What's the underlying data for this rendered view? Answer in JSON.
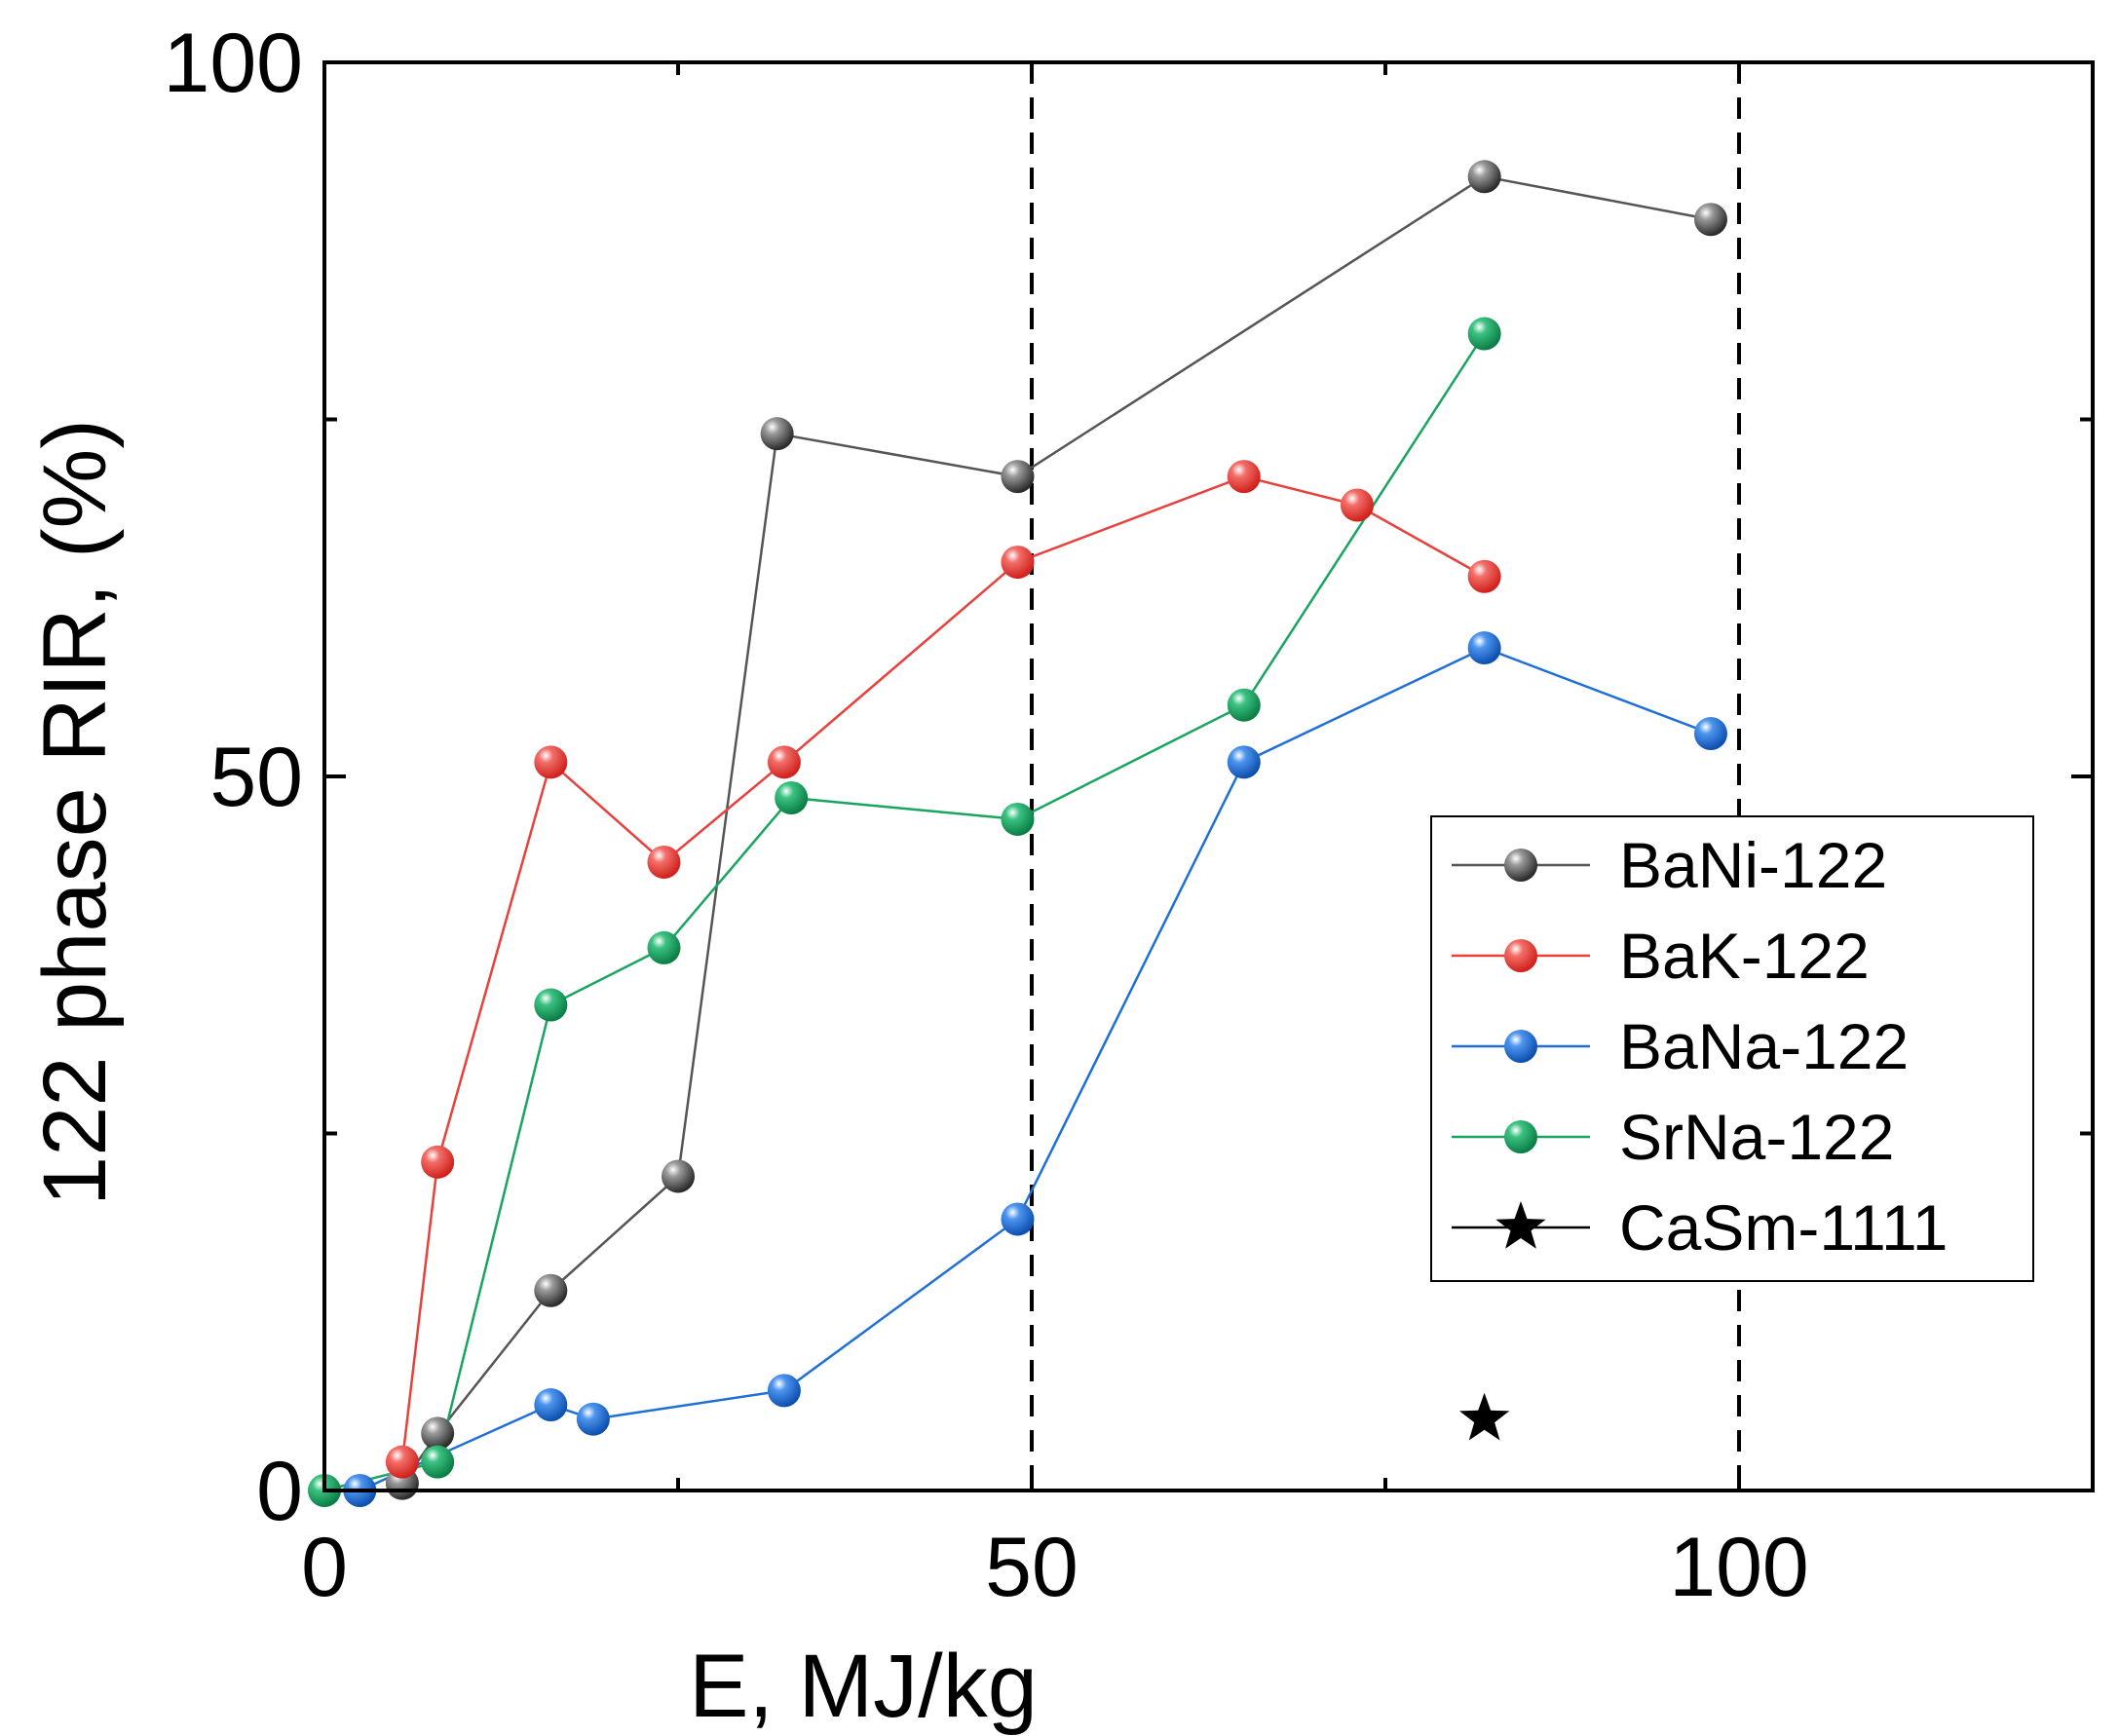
{
  "chart_data": {
    "type": "line",
    "title": "",
    "xlabel": "E, MJ/kg",
    "ylabel": "122 phase RIR, (%)",
    "xlim": [
      0,
      125
    ],
    "ylim": [
      0,
      100
    ],
    "xticks": [
      0,
      50,
      100
    ],
    "yticks": [
      0,
      50,
      100
    ],
    "xtick_labels": [
      "0",
      "50",
      "100"
    ],
    "ytick_labels": [
      "0",
      "50",
      "100"
    ],
    "reference_lines_x": [
      50,
      100
    ],
    "legend_position": "right",
    "series": [
      {
        "name": "BaNi-122",
        "color": "#555555",
        "marker": "sphere",
        "x": [
          5.5,
          8,
          16,
          25,
          32,
          49,
          82,
          98
        ],
        "y": [
          0.5,
          4,
          14,
          22,
          74,
          71,
          92,
          89
        ]
      },
      {
        "name": "BaK-122",
        "color": "#e8413c",
        "marker": "sphere",
        "x": [
          5.5,
          8,
          16,
          24,
          32.5,
          49,
          65,
          73,
          82
        ],
        "y": [
          2,
          23,
          51,
          44,
          51,
          65,
          71,
          69,
          64
        ]
      },
      {
        "name": "BaNa-122",
        "color": "#1f6fd6",
        "marker": "sphere",
        "x": [
          2.5,
          16,
          19,
          32.5,
          49,
          65,
          82,
          98
        ],
        "y": [
          0,
          6,
          5,
          7,
          19,
          51,
          59,
          53
        ]
      },
      {
        "name": "SrNa-122",
        "color": "#19a560",
        "marker": "sphere",
        "x": [
          0,
          8,
          16,
          24,
          33,
          49,
          65,
          82
        ],
        "y": [
          0,
          2,
          34,
          38,
          48.5,
          47,
          55,
          81
        ]
      },
      {
        "name": "CaSm-1111",
        "color": "#000000",
        "marker": "star",
        "x": [
          82
        ],
        "y": [
          5
        ]
      }
    ]
  }
}
